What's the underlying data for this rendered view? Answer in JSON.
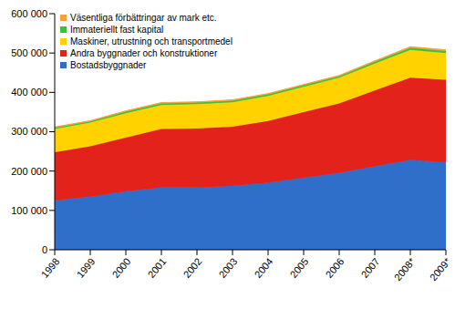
{
  "chart_data": {
    "type": "area",
    "stacked": true,
    "grid": false,
    "legend": "upper left",
    "categories": [
      "1998",
      "1999",
      "2000",
      "2001",
      "2002",
      "2003",
      "2004",
      "2005",
      "2006",
      "2007",
      "2008*",
      "2009*"
    ],
    "ylim": [
      0,
      600000
    ],
    "yticks": [
      0,
      {
        "value": 100000,
        "label": "100 000"
      },
      {
        "value": 200000,
        "label": "200 000"
      },
      {
        "value": 300000,
        "label": "300 000"
      },
      {
        "value": 400000,
        "label": "400 000"
      },
      {
        "value": 500000,
        "label": "500 000"
      },
      {
        "value": 600000,
        "label": "600 000"
      }
    ],
    "series": [
      {
        "name": "Bostadsbyggnader",
        "color": "#2f6fc9",
        "values": [
          125000,
          135000,
          148000,
          158000,
          158000,
          162000,
          170000,
          183000,
          195000,
          212000,
          228000,
          222000
        ]
      },
      {
        "name": "Andra byggnader och konstruktioner",
        "color": "#e3221c",
        "values": [
          123000,
          128000,
          137000,
          149000,
          150000,
          151000,
          157000,
          167000,
          177000,
          193000,
          209000,
          210000
        ]
      },
      {
        "name": "Maskiner, utrustning och transportmedel",
        "color": "#ffd200",
        "values": [
          59000,
          60000,
          62000,
          61000,
          62000,
          62000,
          64000,
          64000,
          65000,
          68000,
          71000,
          68000
        ]
      },
      {
        "name": "Immateriellt fast kapital",
        "color": "#39c23a",
        "values": [
          3000,
          3000,
          4000,
          4000,
          4000,
          4000,
          4000,
          4000,
          4000,
          5000,
          5000,
          5000
        ]
      },
      {
        "name": "Väsentliga förbättringar av mark etc.",
        "color": "#f7a13a",
        "values": [
          2000,
          2000,
          2000,
          2000,
          2000,
          2000,
          2000,
          2000,
          2000,
          2000,
          3000,
          3000
        ]
      }
    ]
  }
}
